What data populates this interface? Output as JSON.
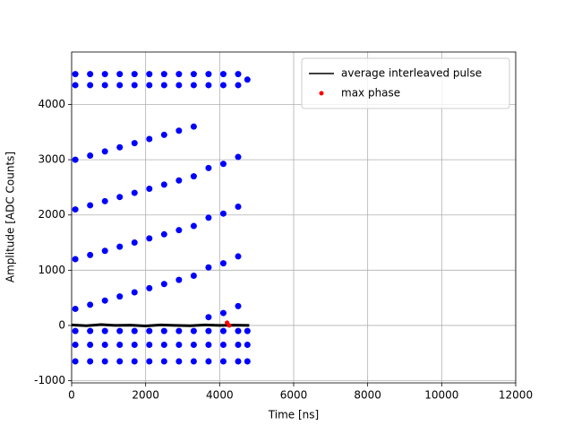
{
  "chart_data": {
    "type": "scatter",
    "xlabel": "Time [ns]",
    "ylabel": "Amplitude [ADC Counts]",
    "xlim": [
      0,
      12000
    ],
    "ylim": [
      -1040,
      4950
    ],
    "xticks": [
      0,
      2000,
      4000,
      6000,
      8000,
      10000,
      12000
    ],
    "yticks": [
      -1000,
      0,
      1000,
      2000,
      3000,
      4000
    ],
    "grid": true,
    "legend": "upper right",
    "series": [
      {
        "color": "#0000ff",
        "kind": "scatter",
        "x": [
          100,
          100,
          100,
          100,
          100,
          100,
          100,
          100,
          100,
          500,
          500,
          500,
          500,
          500,
          500,
          500,
          500,
          500,
          900,
          900,
          900,
          900,
          900,
          900,
          900,
          900,
          900,
          1300,
          1300,
          1300,
          1300,
          1300,
          1300,
          1300,
          1300,
          1300,
          1700,
          1700,
          1700,
          1700,
          1700,
          1700,
          1700,
          1700,
          1700,
          2100,
          2100,
          2100,
          2100,
          2100,
          2100,
          2100,
          2100,
          2100,
          2500,
          2500,
          2500,
          2500,
          2500,
          2500,
          2500,
          2500,
          2500,
          2900,
          2900,
          2900,
          2900,
          2900,
          2900,
          2900,
          2900,
          2900,
          3300,
          3300,
          3300,
          3300,
          3300,
          3300,
          3300,
          3300,
          3300,
          3700,
          3700,
          3700,
          3700,
          3700,
          3700,
          3700,
          3700,
          3700,
          4100,
          4100,
          4100,
          4100,
          4100,
          4100,
          4100,
          4100,
          4100,
          4500,
          4500,
          4500,
          4500,
          4500,
          4500,
          4500,
          4500,
          4500,
          4750,
          4750,
          4750,
          4750
        ],
        "values": [
          -650,
          -350,
          -100,
          4350,
          4550,
          300,
          1200,
          2100,
          3000,
          -650,
          -350,
          -100,
          4350,
          4550,
          375,
          1275,
          2175,
          3075,
          -650,
          -350,
          -100,
          4350,
          4550,
          450,
          1350,
          2250,
          3150,
          -650,
          -350,
          -100,
          4350,
          4550,
          525,
          1425,
          2325,
          3225,
          -650,
          -350,
          -100,
          4350,
          4550,
          600,
          1500,
          2400,
          3300,
          -650,
          -350,
          -100,
          4350,
          4550,
          675,
          1575,
          2475,
          3375,
          -650,
          -350,
          -100,
          4350,
          4550,
          750,
          1650,
          2550,
          3450,
          -650,
          -350,
          -100,
          4350,
          4550,
          825,
          1725,
          2625,
          3525,
          -650,
          -350,
          -100,
          4350,
          4550,
          900,
          1800,
          2700,
          3600,
          -650,
          -350,
          -100,
          4350,
          4550,
          150,
          1050,
          1950,
          2850,
          -650,
          -350,
          -100,
          4350,
          4550,
          225,
          1125,
          2025,
          2925,
          -650,
          -350,
          -100,
          4350,
          4550,
          350,
          1250,
          2150,
          3050,
          -650,
          -350,
          -100,
          4450
        ]
      },
      {
        "name": "average interleaved pulse",
        "color": "#000000",
        "kind": "line",
        "x": [
          0,
          400,
          800,
          1200,
          1600,
          2000,
          2400,
          2800,
          3200,
          3600,
          4000,
          4400,
          4800
        ],
        "values": [
          10,
          -5,
          15,
          0,
          5,
          -10,
          10,
          0,
          -5,
          10,
          0,
          5,
          0
        ]
      },
      {
        "name": "max phase",
        "color": "#ff0000",
        "kind": "scatter",
        "x": [
          4200,
          4260
        ],
        "values": [
          50,
          0
        ]
      }
    ]
  }
}
